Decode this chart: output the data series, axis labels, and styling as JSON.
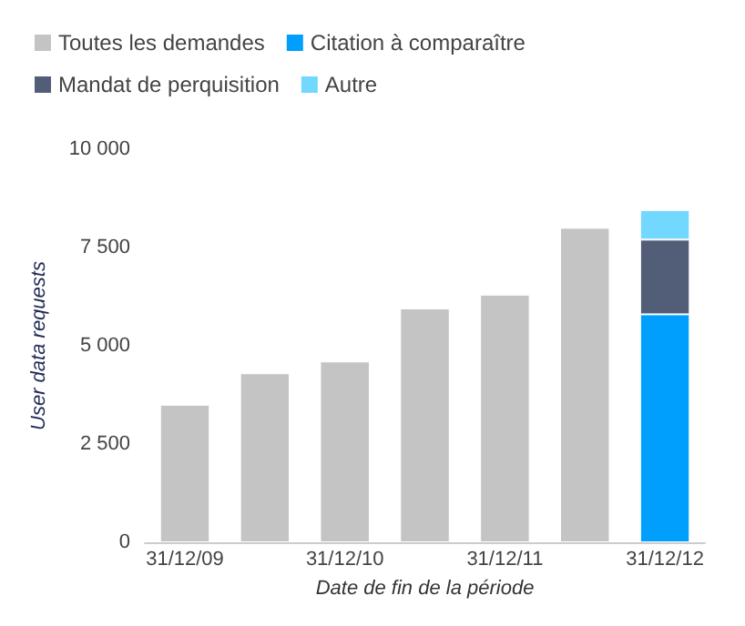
{
  "chart_data": {
    "type": "bar",
    "stacked": true,
    "xlabel": "Date de fin de la période",
    "ylabel": "User data requests",
    "categories": [
      "31/12/09",
      null,
      "31/12/10",
      null,
      "31/12/11",
      null,
      "31/12/12"
    ],
    "series": [
      {
        "name": "Toutes les demandes",
        "color": "#c4c4c4",
        "values": [
          3500,
          4300,
          4600,
          5950,
          6300,
          8000,
          null
        ]
      },
      {
        "name": "Citation à comparaître",
        "color": "#009ffe",
        "values": [
          null,
          null,
          null,
          null,
          null,
          null,
          5800
        ]
      },
      {
        "name": "Mandat de perquisition",
        "color": "#525e78",
        "values": [
          null,
          null,
          null,
          null,
          null,
          null,
          1900
        ]
      },
      {
        "name": "Autre",
        "color": "#72d8ff",
        "values": [
          null,
          null,
          null,
          null,
          null,
          null,
          750
        ]
      }
    ],
    "ylim": [
      0,
      10000
    ],
    "yticks": [
      0,
      2500,
      5000,
      7500,
      10000
    ],
    "grid": false,
    "legend": "top left"
  }
}
